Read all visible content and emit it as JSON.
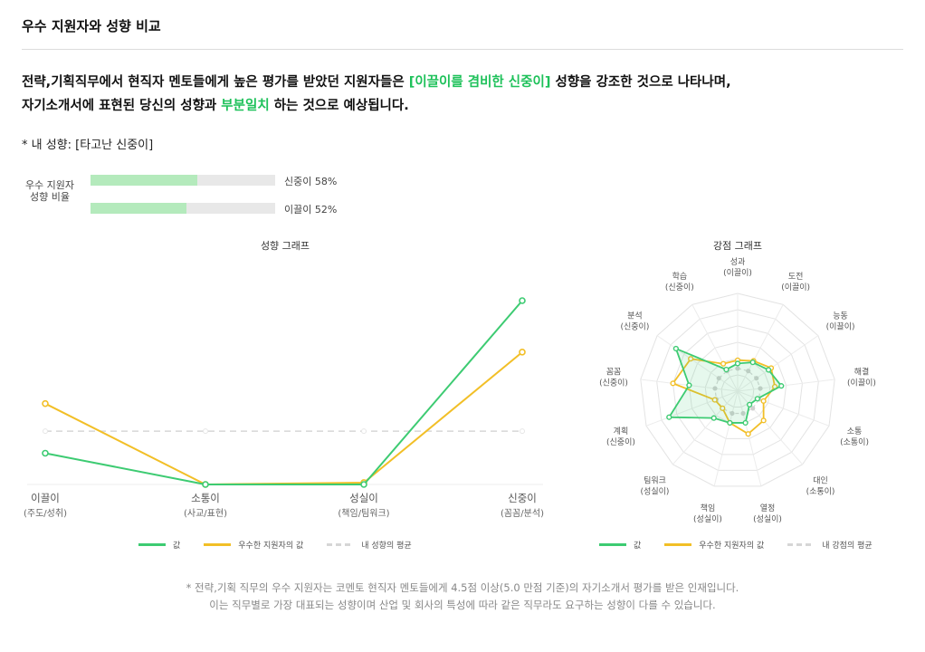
{
  "page_title": "우수 지원자와 성향 비교",
  "headline": {
    "line1_prefix": "전략,기획직무에서 현직자 멘토들에게 높은 평가를 받았던 지원자들은 ",
    "line1_highlight": "[이끌이를 겸비한 신중이]",
    "line1_suffix": " 성향을 강조한 것으로 나타나며,",
    "line2_prefix": "자기소개서에 표현된 당신의 성향과 ",
    "line2_highlight": "부분일치",
    "line2_suffix": " 하는 것으로 예상됩니다."
  },
  "my_trait": "* 내 성향: [타고난 신중이]",
  "ratio": {
    "label_line1": "우수 지원자",
    "label_line2": "성향 비율",
    "bars": [
      {
        "label": "신중이 58%",
        "value": 0.58
      },
      {
        "label": "이끌이 52%",
        "value": 0.52
      }
    ]
  },
  "colors": {
    "green": "#3dcb72",
    "yellow": "#f2bf27",
    "avg": "#d6d6d6",
    "highlight": "#1ec15a"
  },
  "chart_data": [
    {
      "type": "line",
      "title": "성향 그래프",
      "categories": [
        {
          "name": "이끌이",
          "sub": "(주도/성취)"
        },
        {
          "name": "소통이",
          "sub": "(사교/표현)"
        },
        {
          "name": "성실이",
          "sub": "(책임/팀워크)"
        },
        {
          "name": "신중이",
          "sub": "(꼼꼼/분석)"
        }
      ],
      "series": [
        {
          "name": "값",
          "color": "#3dcb72",
          "values": [
            0.17,
            0.0,
            0.0,
            1.0
          ]
        },
        {
          "name": "우수한 지원자의 값",
          "color": "#f2bf27",
          "values": [
            0.44,
            0.0,
            0.01,
            0.72
          ]
        },
        {
          "name": "내 성향의 평균",
          "color": "#d6d6d6",
          "dashed": true,
          "values": [
            0.29,
            0.29,
            0.29,
            0.29
          ]
        }
      ],
      "ylim": [
        0,
        1
      ],
      "grid": false
    },
    {
      "type": "radar",
      "title": "강점 그래프",
      "axes": [
        {
          "name": "성과",
          "sub": "(이끌이)"
        },
        {
          "name": "도전",
          "sub": "(이끌이)"
        },
        {
          "name": "능동",
          "sub": "(이끌이)"
        },
        {
          "name": "해결",
          "sub": "(이끌이)"
        },
        {
          "name": "소통",
          "sub": "(소통이)"
        },
        {
          "name": "대인",
          "sub": "(소통이)"
        },
        {
          "name": "열정",
          "sub": "(성실이)"
        },
        {
          "name": "책임",
          "sub": "(성실이)"
        },
        {
          "name": "팀워크",
          "sub": "(성실이)"
        },
        {
          "name": "계획",
          "sub": "(신중이)"
        },
        {
          "name": "꼼꼼",
          "sub": "(신중이)"
        },
        {
          "name": "분석",
          "sub": "(신중이)"
        },
        {
          "name": "학습",
          "sub": "(신중이)"
        }
      ],
      "rings": 6,
      "rmax": 6,
      "series": [
        {
          "name": "값",
          "color": "#3dcb72",
          "values": [
            1.7,
            2.0,
            2.3,
            2.7,
            1.3,
            1.1,
            2.0,
            2.0,
            2.2,
            4.5,
            3.0,
            4.6,
            1.5
          ]
        },
        {
          "name": "우수한 지원자의 값",
          "color": "#f2bf27",
          "values": [
            1.9,
            2.1,
            2.5,
            2.3,
            1.7,
            2.4,
            2.7,
            2.0,
            1.4,
            1.5,
            4.0,
            3.5,
            1.9
          ]
        },
        {
          "name": "내 강점의 평균",
          "color": "#d6d6d6",
          "dashed": true,
          "values": [
            1.4,
            1.4,
            1.4,
            1.4,
            1.4,
            1.4,
            1.4,
            1.4,
            1.4,
            1.4,
            1.4,
            1.4,
            1.4
          ]
        }
      ]
    }
  ],
  "footnote": {
    "line1": "* 전략,기획 직무의 우수 지원자는 코멘토 현직자 멘토들에게 4.5점 이상(5.0 만점 기준)의 자기소개서 평가를 받은 인재입니다.",
    "line2": "이는 직무별로 가장 대표되는 성향이며 산업 및 회사의 특성에 따라 같은 직무라도 요구하는 성향이 다를 수 있습니다."
  }
}
